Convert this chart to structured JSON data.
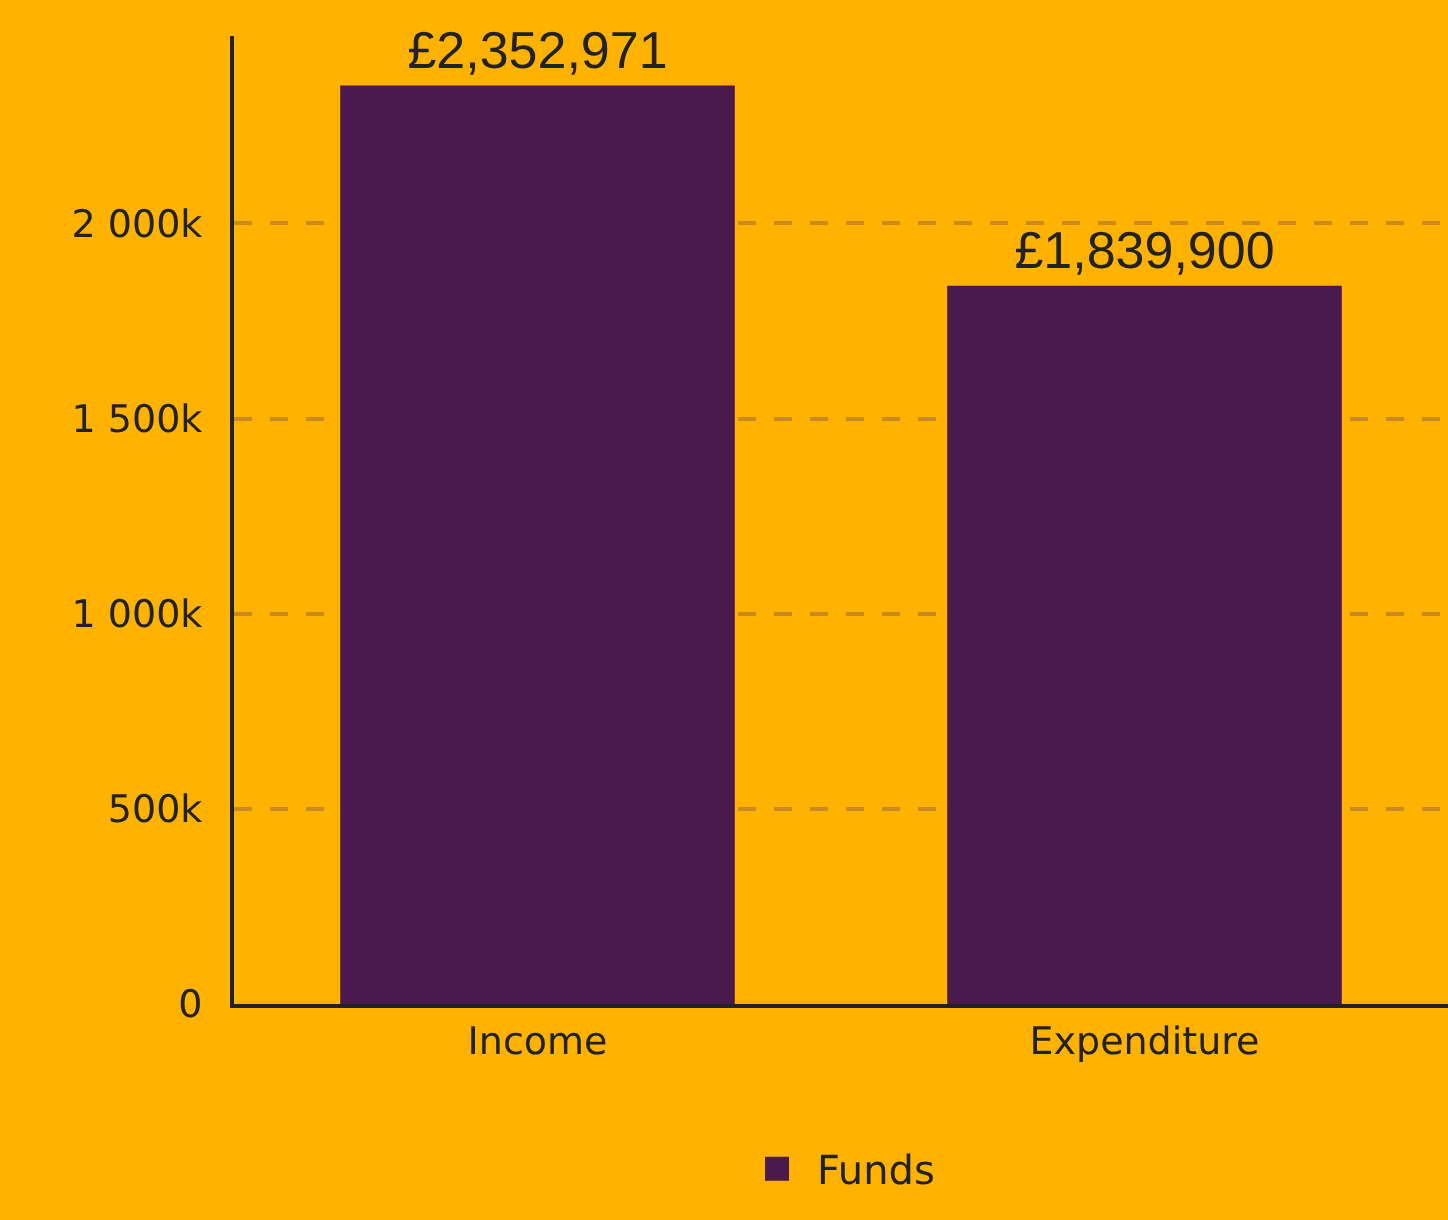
{
  "chart_data": {
    "type": "bar",
    "categories": [
      "Income",
      "Expenditure"
    ],
    "series": [
      {
        "name": "Funds",
        "color": "#4a1a4e",
        "values": [
          2352971,
          1839900
        ],
        "value_labels": [
          "£2,352,971",
          "£1,839,900"
        ]
      }
    ],
    "ylim": [
      0,
      2480000
    ],
    "yticks": [
      0,
      {
        "value": 500000,
        "label": "500k"
      },
      {
        "value": 1000000,
        "label": "1 000k"
      },
      {
        "value": 1500000,
        "label": "1 500k"
      },
      {
        "value": 2000000,
        "label": "2 000k"
      }
    ],
    "grid": "y",
    "legend": "bottom"
  }
}
